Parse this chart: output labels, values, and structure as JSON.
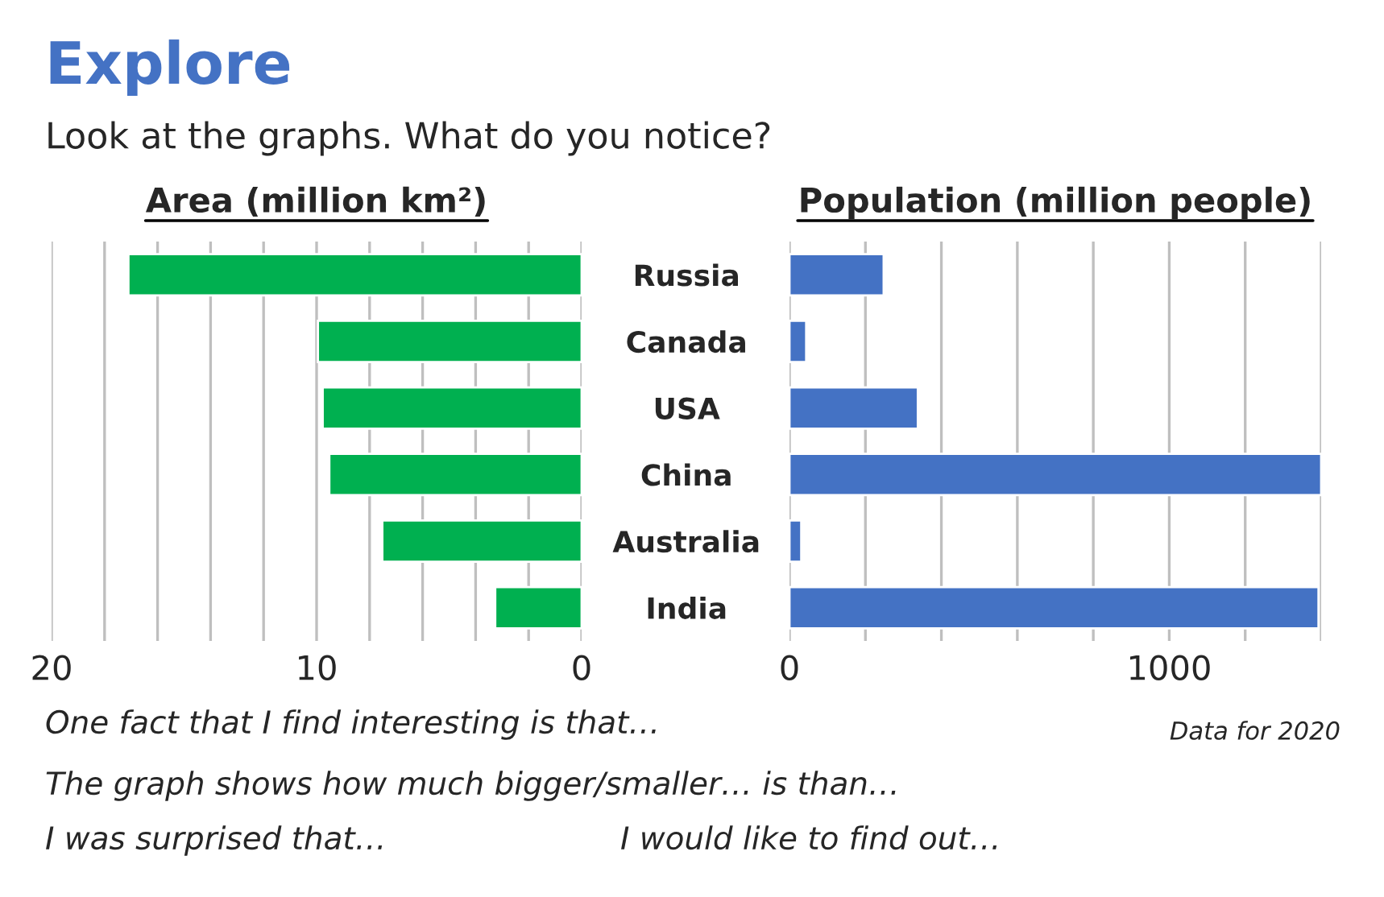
{
  "chart_data": [
    {
      "type": "bar",
      "orientation": "horizontal",
      "title": "Explore",
      "subtitle": "Look at the graphs. What do you notice?",
      "xlabel": "Area (million km²)",
      "series": [
        {
          "color": "#00b050",
          "values": [
            17.1,
            9.95,
            9.77,
            9.52,
            7.52,
            3.26
          ]
        }
      ],
      "xlim": [
        20,
        0
      ],
      "xticks": [
        20,
        {
          "value": 18,
          "label": null
        },
        {
          "value": 16,
          "label": null
        },
        {
          "value": 14,
          "label": null
        },
        {
          "value": 12,
          "label": null
        },
        10,
        {
          "value": 8,
          "label": null
        },
        {
          "value": 6,
          "label": null
        },
        {
          "value": 4,
          "label": null
        },
        {
          "value": 2,
          "label": null
        },
        0
      ],
      "grid": "x",
      "tick_labels": "x",
      "annotations": [
        "One fact that I find interesting is that…",
        "Data for 2020",
        "The graph shows how much bigger/smaller… is than…",
        "I was surprised that…",
        "I would like to find out…"
      ]
    },
    {
      "type": "bar",
      "orientation": "horizontal",
      "xlabel": "Population (million people)",
      "categories": [
        "Russia",
        "Canada",
        "USA",
        "China",
        "Australia",
        "India"
      ],
      "series": [
        {
          "color": "#4472c4",
          "values": [
            248,
            44,
            338,
            1400,
            31,
            1393
          ]
        }
      ],
      "xlim": [
        0,
        1400
      ],
      "xticks": [
        0,
        {
          "value": 200,
          "label": null
        },
        {
          "value": 400,
          "label": null
        },
        {
          "value": 600,
          "label": null
        },
        {
          "value": 800,
          "label": null
        },
        1000,
        {
          "value": 1200,
          "label": null
        },
        {
          "value": 1400,
          "label": null
        }
      ],
      "grid": "x"
    }
  ]
}
